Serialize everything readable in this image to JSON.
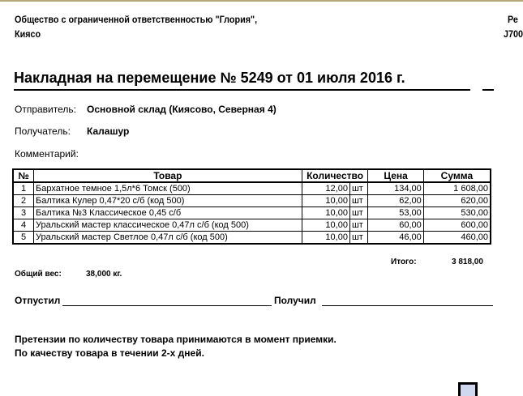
{
  "header": {
    "line1": "Общество с ограниченной ответственностью \"Глория\",",
    "line1_right": "Ре",
    "line2": "Киясо",
    "line2_right": "J700"
  },
  "title": "Накладная на перемещение № 5249 от 01 июля 2016 г.",
  "sender": {
    "label": "Отправитель:",
    "value": "Основной склад (Киясово, Северная 4)"
  },
  "receiver": {
    "label": "Получатель:",
    "value": "Калашур"
  },
  "comment": {
    "label": "Комментарий:"
  },
  "table": {
    "headers": [
      "№",
      "Товар",
      "Количество",
      "Цена",
      "Сумма"
    ],
    "rows": [
      {
        "n": "1",
        "item": "Бархатное темное 1,5л*6 Томск (500)",
        "qty": "12,00",
        "unit": "шт",
        "price": "134,00",
        "sum": "1 608,00"
      },
      {
        "n": "2",
        "item": "Балтика Кулер 0,47*20 с/б (код 500)",
        "qty": "10,00",
        "unit": "шт",
        "price": "62,00",
        "sum": "620,00"
      },
      {
        "n": "3",
        "item": "Балтика №3 Классическое 0,45 с/б",
        "qty": "10,00",
        "unit": "шт",
        "price": "53,00",
        "sum": "530,00"
      },
      {
        "n": "4",
        "item": "Уральский мастер классическое 0,47л с/б (код 500)",
        "qty": "10,00",
        "unit": "шт",
        "price": "60,00",
        "sum": "600,00"
      },
      {
        "n": "5",
        "item": "Уральский мастер Светлое 0,47л с/б (код 500)",
        "qty": "10,00",
        "unit": "шт",
        "price": "46,00",
        "sum": "460,00"
      }
    ]
  },
  "total": {
    "label": "Итого:",
    "value": "3 818,00"
  },
  "weight": {
    "label": "Общий вес:",
    "value": "38,000 кг."
  },
  "signatures": {
    "released": "Отпустил",
    "received": "Получил"
  },
  "notes": [
    "Претензии по количеству товара принимаются в момент приемки.",
    "По качеству товара в течении 2-х дней."
  ]
}
